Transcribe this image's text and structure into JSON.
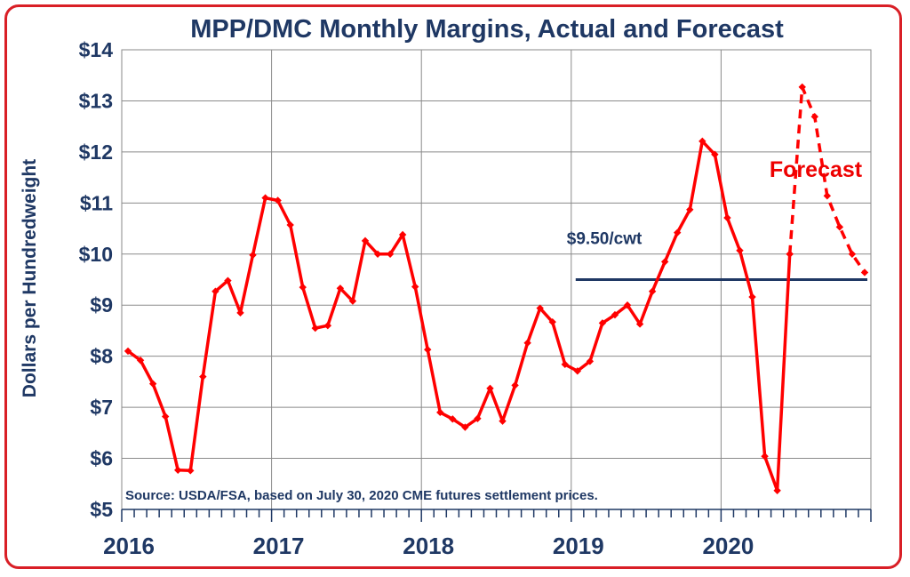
{
  "chart_data": {
    "type": "line",
    "title": "MPP/DMC Monthly Margins, Actual and Forecast",
    "ylabel": "Dollars per Hundredweight",
    "xlabel": "",
    "ylim": [
      5,
      14
    ],
    "yticks": [
      5,
      6,
      7,
      8,
      9,
      10,
      11,
      12,
      13,
      14
    ],
    "ytick_labels": [
      "$5",
      "$6",
      "$7",
      "$8",
      "$9",
      "$10",
      "$11",
      "$12",
      "$13",
      "$14"
    ],
    "x_year_labels": [
      "2016",
      "2017",
      "2018",
      "2019",
      "2020"
    ],
    "x_start": "2016-01",
    "grid": true,
    "series": [
      {
        "role": "actual",
        "color": "#ff0000",
        "values": [
          8.1,
          7.92,
          7.46,
          6.82,
          5.77,
          5.76,
          7.6,
          9.27,
          9.48,
          8.85,
          9.98,
          11.1,
          11.05,
          10.57,
          9.35,
          8.55,
          8.6,
          9.33,
          9.08,
          10.26,
          10.0,
          10.0,
          10.38,
          9.36,
          8.13,
          6.9,
          6.77,
          6.61,
          6.78,
          7.37,
          6.73,
          7.43,
          8.26,
          8.94,
          8.67,
          7.84,
          7.71,
          7.9,
          8.65,
          8.81,
          9.0,
          8.63,
          9.27,
          9.85,
          10.42,
          10.87,
          12.21,
          11.95,
          10.71,
          10.07,
          9.16,
          6.04,
          5.37,
          10.0
        ]
      },
      {
        "role": "forecast",
        "color": "#ff0000",
        "style": "dashed",
        "start_index": 53,
        "values": [
          10.0,
          13.27,
          12.69,
          11.14,
          10.53,
          10.0,
          9.64
        ]
      }
    ],
    "reference_line": {
      "value": 9.5,
      "label": "$9.50/cwt",
      "from_index": 36,
      "to_index": 60,
      "color": "#1f3864"
    },
    "annotations": {
      "forecast_label": "Forecast",
      "source": "Source:  USDA/FSA, based on July 30, 2020 CME futures settlement prices."
    }
  }
}
